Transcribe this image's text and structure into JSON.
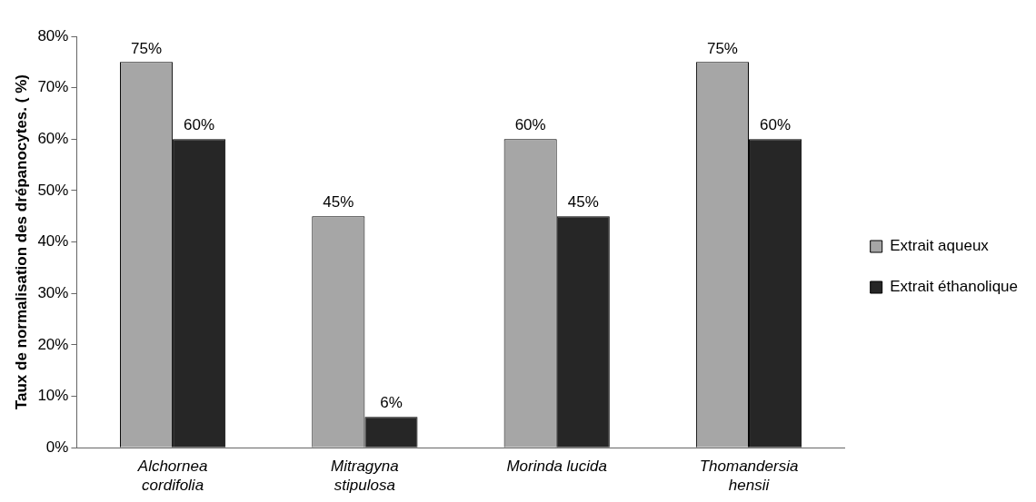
{
  "chart_data": {
    "type": "bar",
    "ylabel": "Taux de normalisation des drépanocytes. ( %)",
    "categories": [
      "Alchornea cordifolia",
      "Mitragyna stipulosa",
      "Morinda lucida",
      "Thomandersia hensii"
    ],
    "series": [
      {
        "name": "Extrait aqueux",
        "color": "#a6a6a6",
        "values": [
          75,
          45,
          60,
          75
        ],
        "value_labels": [
          "75%",
          "45%",
          "60%",
          "75%"
        ]
      },
      {
        "name": "Extrait éthanolique",
        "color": "#262626",
        "values": [
          60,
          6,
          45,
          60
        ],
        "value_labels": [
          "60%",
          "6%",
          "45%",
          "60%"
        ]
      }
    ],
    "ylim": [
      0,
      80
    ],
    "yticks": [
      {
        "value": 0,
        "label": "0%"
      },
      {
        "value": 10,
        "label": "10%"
      },
      {
        "value": 20,
        "label": "20%"
      },
      {
        "value": 30,
        "label": "30%"
      },
      {
        "value": 40,
        "label": "40%"
      },
      {
        "value": 50,
        "label": "50%"
      },
      {
        "value": 60,
        "label": "60%"
      },
      {
        "value": 70,
        "label": "70%"
      },
      {
        "value": 80,
        "label": "80%"
      }
    ],
    "grid": false,
    "legend": "right"
  }
}
